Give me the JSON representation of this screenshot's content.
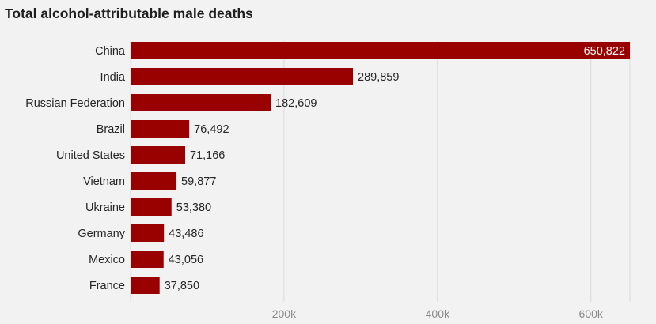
{
  "chart_data": {
    "type": "bar",
    "orientation": "horizontal",
    "title": "Total alcohol-attributable male deaths",
    "xlabel": "",
    "ylabel": "",
    "categories": [
      "China",
      "India",
      "Russian Federation",
      "Brazil",
      "United States",
      "Vietnam",
      "Ukraine",
      "Germany",
      "Mexico",
      "France"
    ],
    "values": [
      650822,
      289859,
      182609,
      76492,
      71166,
      59877,
      53380,
      43486,
      43056,
      37850
    ],
    "value_labels": [
      "650,822",
      "289,859",
      "182,609",
      "76,492",
      "71,166",
      "59,877",
      "53,380",
      "43,486",
      "43,056",
      "37,850"
    ],
    "xlim": [
      0,
      650822
    ],
    "x_ticks": [
      200000,
      400000,
      600000
    ],
    "x_tick_labels": [
      "200k",
      "400k",
      "600k"
    ],
    "grid": true,
    "legend": "none",
    "bar_color": "#990000",
    "grid_color": "#d9d9d9"
  }
}
